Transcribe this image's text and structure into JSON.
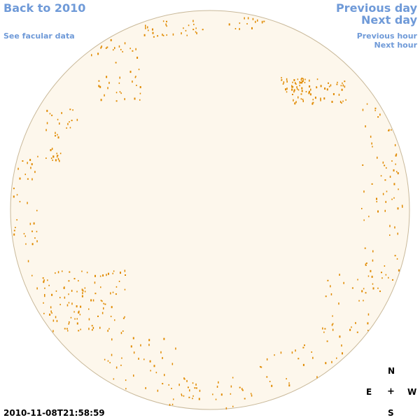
{
  "nav": {
    "back_label": "Back to 2010",
    "facular_label": "See facular data",
    "prev_day_label": "Previous day",
    "next_day_label": "Next day",
    "prev_hour_label": "Previous hour",
    "next_hour_label": "Next hour"
  },
  "compass": {
    "north": "N",
    "east": "E",
    "center": "+",
    "west": "W",
    "south": "S"
  },
  "timestamp": "2010-11-08T21:58:59",
  "colors": {
    "disk_fill": "#fdf7ec",
    "disk_outline": "#c9b99a",
    "spot": "#e08a00",
    "link": "#6f9ad8"
  }
}
